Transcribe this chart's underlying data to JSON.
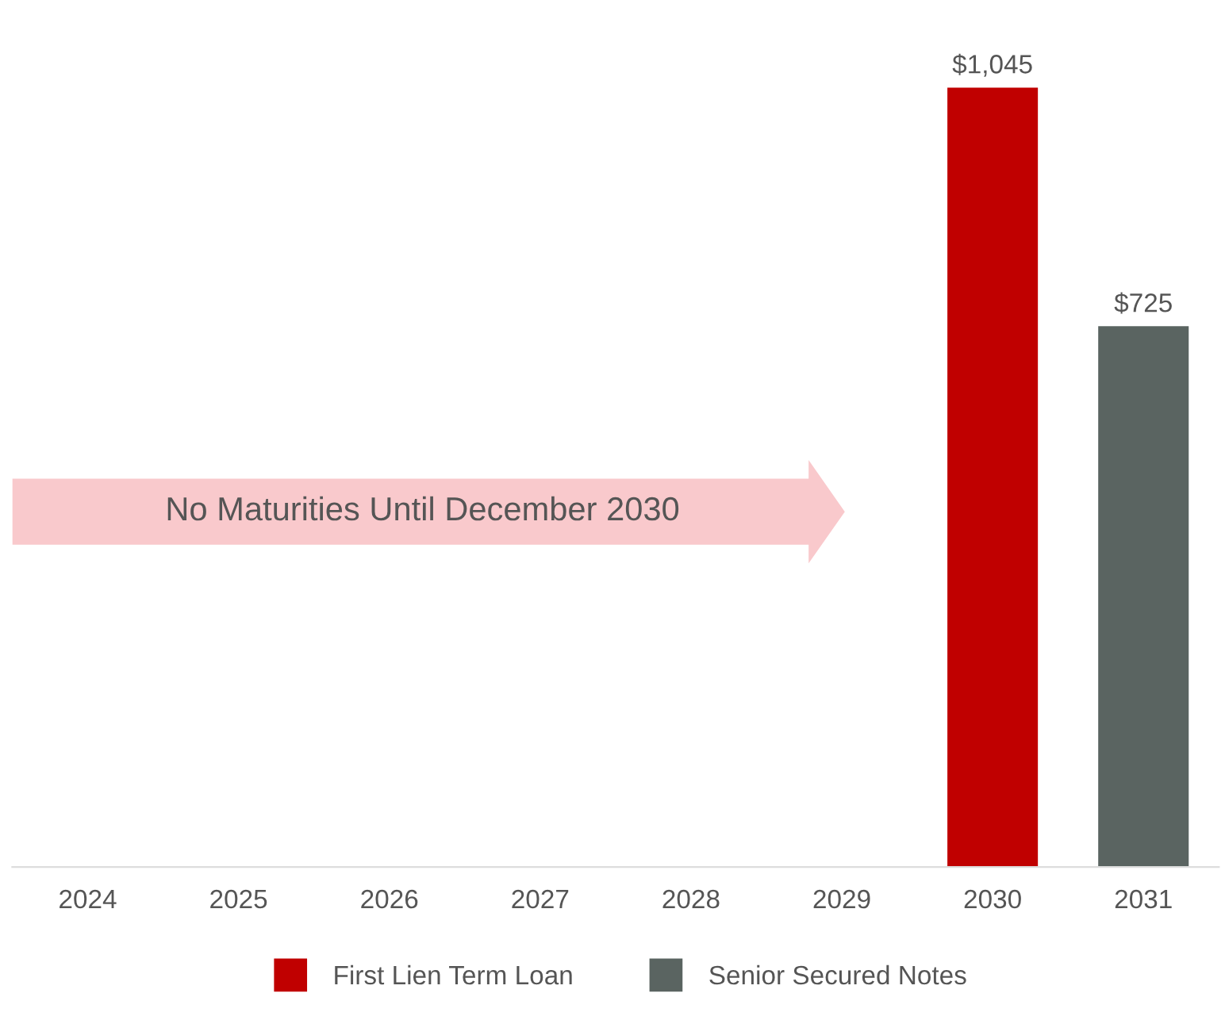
{
  "chart_data": {
    "type": "bar",
    "stacked": true,
    "categories": [
      "2024",
      "2025",
      "2026",
      "2027",
      "2028",
      "2029",
      "2030",
      "2031"
    ],
    "series": [
      {
        "name": "First Lien Term Loan",
        "color": "#c00000",
        "values": [
          null,
          null,
          null,
          null,
          null,
          null,
          1045,
          null
        ],
        "value_labels": [
          null,
          null,
          null,
          null,
          null,
          null,
          "$1,045",
          null
        ]
      },
      {
        "name": "Senior Secured Notes",
        "color": "#5a6461",
        "values": [
          null,
          null,
          null,
          null,
          null,
          null,
          null,
          725
        ],
        "value_labels": [
          null,
          null,
          null,
          null,
          null,
          null,
          null,
          "$725"
        ]
      }
    ],
    "annotations": [
      "No Maturities Until December 2030"
    ],
    "legend": "bottom",
    "grid": false
  }
}
